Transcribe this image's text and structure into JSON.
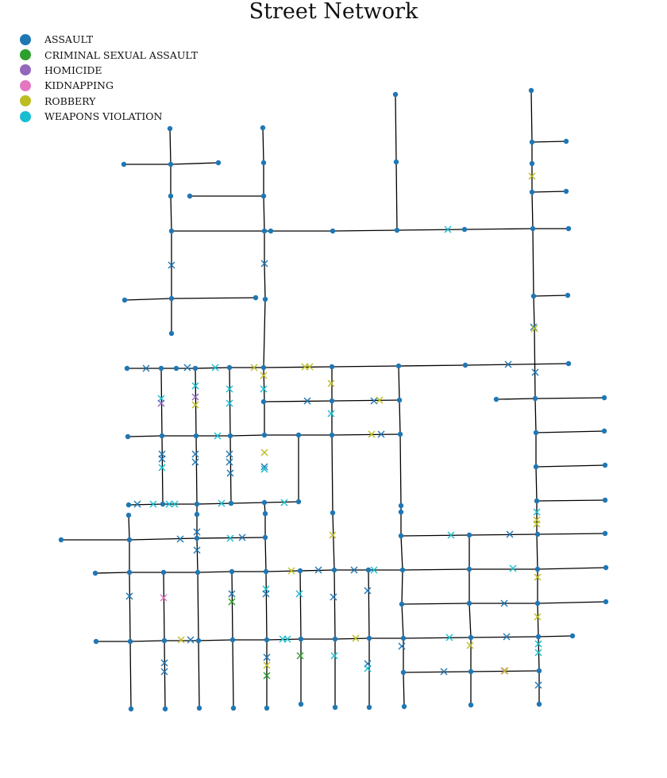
{
  "title": "Street Network",
  "legend": [
    {
      "label": "ASSAULT",
      "color": "#1f77b4"
    },
    {
      "label": "CRIMINAL SEXUAL ASSAULT",
      "color": "#2ca02c"
    },
    {
      "label": "HOMICIDE",
      "color": "#9467bd"
    },
    {
      "label": "KIDNAPPING",
      "color": "#e377c2"
    },
    {
      "label": "ROBBERY",
      "color": "#bcbd22"
    },
    {
      "label": "WEAPONS VIOLATION",
      "color": "#17becf"
    }
  ]
}
